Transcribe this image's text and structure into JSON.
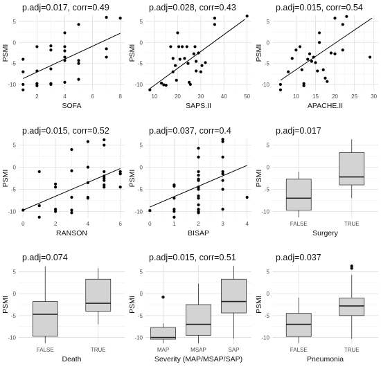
{
  "chart_data": [
    {
      "type": "scatter",
      "title": "p.adj=0.017, corr=0.49",
      "xlabel": "SOFA",
      "ylabel": "PSMI",
      "xlim": [
        1,
        8
      ],
      "ylim": [
        -11.5,
        6.5
      ],
      "xticks": [
        2,
        4,
        6,
        8
      ],
      "yticks": [
        -10,
        -5,
        0,
        5
      ],
      "fit": {
        "x": [
          1,
          8
        ],
        "y": [
          -8.6,
          2.2
        ]
      },
      "points": [
        [
          1,
          -4
        ],
        [
          1,
          -7
        ],
        [
          1,
          -10
        ],
        [
          1,
          -11.3
        ],
        [
          2,
          -1
        ],
        [
          2,
          -6.8
        ],
        [
          2,
          -9.8
        ],
        [
          2,
          -10.3
        ],
        [
          3,
          -0.8
        ],
        [
          3,
          -1.8
        ],
        [
          3,
          -6.3
        ],
        [
          3,
          -9.8
        ],
        [
          3,
          -10
        ],
        [
          4,
          2.3
        ],
        [
          4,
          -1
        ],
        [
          4,
          -2
        ],
        [
          4,
          -3.5
        ],
        [
          4,
          -4.3
        ],
        [
          4,
          -9.5
        ],
        [
          5,
          4.3
        ],
        [
          5,
          -4.3
        ],
        [
          5,
          -5
        ],
        [
          5,
          -8.8
        ],
        [
          7,
          6
        ],
        [
          7,
          -1.5
        ],
        [
          7,
          -3.5
        ],
        [
          8,
          5.8
        ]
      ]
    },
    {
      "type": "scatter",
      "title": "p.adj=0.028, corr=0.43",
      "xlabel": "SAPS.II",
      "ylabel": "PSMI",
      "xlim": [
        8,
        50
      ],
      "ylim": [
        -11.5,
        6.5
      ],
      "xticks": [
        10,
        20,
        30,
        40,
        50
      ],
      "yticks": [
        -10,
        -5,
        0,
        5
      ],
      "fit": {
        "x": [
          8,
          49
        ],
        "y": [
          -11,
          5.5
        ]
      },
      "points": [
        [
          8,
          -11.3
        ],
        [
          13,
          -9.7
        ],
        [
          14,
          -10.1
        ],
        [
          15,
          -10.2
        ],
        [
          17,
          -1
        ],
        [
          18,
          -3.8
        ],
        [
          18,
          -7
        ],
        [
          19,
          -5.5
        ],
        [
          19.5,
          -9
        ],
        [
          20,
          2.3
        ],
        [
          20.5,
          -1
        ],
        [
          21,
          -4
        ],
        [
          22,
          -1
        ],
        [
          23,
          -3.8
        ],
        [
          24,
          -1
        ],
        [
          24.5,
          -5
        ],
        [
          25,
          -9.5
        ],
        [
          25.5,
          -10
        ],
        [
          27,
          -2.7
        ],
        [
          27.5,
          -1
        ],
        [
          28,
          -4.5
        ],
        [
          28,
          -6.8
        ],
        [
          29,
          -2.5
        ],
        [
          30,
          -7
        ],
        [
          30.5,
          -5.5
        ],
        [
          32,
          -4.8
        ],
        [
          36,
          5.8
        ],
        [
          36,
          4.3
        ],
        [
          50,
          6.3
        ]
      ]
    },
    {
      "type": "scatter",
      "title": "p.adj=0.015, corr=0.54",
      "xlabel": "APACHE.II",
      "ylabel": "PSMI",
      "xlim": [
        5,
        30
      ],
      "ylim": [
        -11.5,
        6.5
      ],
      "xticks": [
        10,
        15,
        20,
        25,
        30
      ],
      "yticks": [
        -10,
        -5,
        0,
        5
      ],
      "fit": {
        "x": [
          6,
          29.5
        ],
        "y": [
          -9,
          5.8
        ]
      },
      "points": [
        [
          6,
          -10
        ],
        [
          6,
          -11.3
        ],
        [
          8,
          -7
        ],
        [
          9,
          -3.8
        ],
        [
          10,
          -1.8
        ],
        [
          11,
          -1
        ],
        [
          11.5,
          -6.5
        ],
        [
          12,
          -9.8
        ],
        [
          12,
          -10.3
        ],
        [
          13,
          -4
        ],
        [
          13.5,
          -2.7
        ],
        [
          14,
          -4.5
        ],
        [
          14.5,
          -3.5
        ],
        [
          15,
          -4.8
        ],
        [
          15.5,
          -6.8
        ],
        [
          16,
          2.3
        ],
        [
          16,
          0
        ],
        [
          17,
          -6.5
        ],
        [
          17.5,
          -8.5
        ],
        [
          18,
          -9.3
        ],
        [
          19,
          -2.5
        ],
        [
          20,
          5.8
        ],
        [
          20,
          -2.7
        ],
        [
          22,
          -1.8
        ],
        [
          22,
          4.3
        ],
        [
          23,
          6.2
        ],
        [
          29,
          -3.5
        ]
      ]
    },
    {
      "type": "scatter",
      "title": "p.adj=0.015, corr=0.52",
      "xlabel": "RANSON",
      "ylabel": "PSMI",
      "xlim": [
        0,
        6
      ],
      "ylim": [
        -11.5,
        6.5
      ],
      "xticks": [
        0,
        2,
        4,
        6
      ],
      "yticks": [
        -10,
        -5,
        0,
        5
      ],
      "fit": {
        "x": [
          0,
          6
        ],
        "y": [
          -9.7,
          -0.3
        ]
      },
      "points": [
        [
          0,
          -9.7
        ],
        [
          1,
          -1
        ],
        [
          1,
          -8.7
        ],
        [
          1,
          -11.3
        ],
        [
          2,
          -3.8
        ],
        [
          2,
          -4.5
        ],
        [
          2,
          -9.5
        ],
        [
          2,
          -10
        ],
        [
          3,
          4
        ],
        [
          3,
          -0.8
        ],
        [
          3,
          -6.8
        ],
        [
          3,
          -9.7
        ],
        [
          3,
          -10.3
        ],
        [
          4,
          5.8
        ],
        [
          4,
          0
        ],
        [
          4,
          -3.5
        ],
        [
          4,
          -6.8
        ],
        [
          4,
          -7
        ],
        [
          5,
          6.2
        ],
        [
          5,
          5
        ],
        [
          5,
          -1
        ],
        [
          5,
          -2
        ],
        [
          5,
          -2.5
        ],
        [
          5,
          -3
        ],
        [
          5,
          -4
        ],
        [
          5,
          -4.5
        ],
        [
          6,
          -1
        ],
        [
          6,
          -1.5
        ],
        [
          6,
          -4.5
        ]
      ]
    },
    {
      "type": "scatter",
      "title": "p.adj=0.037, corr=0.4",
      "xlabel": "BISAP",
      "ylabel": "PSMI",
      "xlim": [
        0,
        4
      ],
      "ylim": [
        -11.5,
        6.5
      ],
      "xticks": [
        0,
        1,
        2,
        3,
        4
      ],
      "yticks": [
        -10,
        -5,
        0,
        5
      ],
      "fit": {
        "x": [
          0,
          4
        ],
        "y": [
          -9,
          0.4
        ]
      },
      "points": [
        [
          0,
          -9.8
        ],
        [
          1,
          -4
        ],
        [
          1,
          -4.3
        ],
        [
          1,
          -7
        ],
        [
          1,
          -9.5
        ],
        [
          1,
          -10
        ],
        [
          1,
          -11.3
        ],
        [
          2,
          4.3
        ],
        [
          2,
          2.3
        ],
        [
          2,
          -1
        ],
        [
          2,
          -1.8
        ],
        [
          2,
          -2.7
        ],
        [
          2,
          -3
        ],
        [
          2,
          -4.5
        ],
        [
          2,
          -5
        ],
        [
          2,
          -6.5
        ],
        [
          2,
          -7
        ],
        [
          2,
          -8.5
        ],
        [
          2,
          -9.5
        ],
        [
          2,
          -10
        ],
        [
          2,
          -10.3
        ],
        [
          3,
          6.3
        ],
        [
          3,
          5.8
        ],
        [
          3,
          2.3
        ],
        [
          3,
          -1
        ],
        [
          3,
          -1.5
        ],
        [
          3,
          -3
        ],
        [
          3,
          -5
        ],
        [
          3,
          -9.5
        ],
        [
          4,
          -6.8
        ]
      ]
    },
    {
      "type": "box",
      "title": "p.adj=0.017",
      "xlabel": "Surgery",
      "ylabel": "PSMI",
      "ylim": [
        -11.5,
        6.5
      ],
      "yticks": [
        -10,
        -5,
        0,
        5
      ],
      "categories": [
        "FALSE",
        "TRUE"
      ],
      "boxes": [
        {
          "min": -11.3,
          "q1": -9.7,
          "median": -7,
          "q3": -2.7,
          "max": -1,
          "outliers": []
        },
        {
          "min": -7,
          "q1": -4,
          "median": -2.2,
          "q3": 3.3,
          "max": 6.3,
          "outliers": []
        }
      ]
    },
    {
      "type": "box",
      "title": "p.adj=0.074",
      "xlabel": "Death",
      "ylabel": "PSMI",
      "ylim": [
        -11.5,
        6.5
      ],
      "yticks": [
        -10,
        -5,
        0,
        5
      ],
      "categories": [
        "FALSE",
        "TRUE"
      ],
      "boxes": [
        {
          "min": -11.3,
          "q1": -9.7,
          "median": -4.7,
          "q3": -1.8,
          "max": 6.2,
          "outliers": []
        },
        {
          "min": -7,
          "q1": -4,
          "median": -2.2,
          "q3": 3.3,
          "max": 5.8,
          "outliers": []
        }
      ]
    },
    {
      "type": "box",
      "title": "p.adj=0.015, corr=0.51",
      "xlabel": "Severity (MAP/MSAP/SAP)",
      "ylabel": "PSMI",
      "ylim": [
        -11.5,
        6.5
      ],
      "yticks": [
        -10,
        -5,
        0,
        5
      ],
      "categories": [
        "MAP",
        "MSAP",
        "SAP"
      ],
      "boxes": [
        {
          "min": -11.3,
          "q1": -10.4,
          "median": -10,
          "q3": -7.7,
          "max": -6.8,
          "outliers": [
            -0.8
          ]
        },
        {
          "min": -11.3,
          "q1": -9.5,
          "median": -7,
          "q3": -2.5,
          "max": 2.3,
          "outliers": []
        },
        {
          "min": -10.2,
          "q1": -4.4,
          "median": -1.8,
          "q3": 3.3,
          "max": 6.3,
          "outliers": []
        }
      ]
    },
    {
      "type": "box",
      "title": "p.adj=0.037",
      "xlabel": "Pneumonia",
      "ylabel": "PSMI",
      "ylim": [
        -11.5,
        6.5
      ],
      "yticks": [
        -10,
        -5,
        0,
        5
      ],
      "categories": [
        "FALSE",
        "TRUE"
      ],
      "boxes": [
        {
          "min": -11.3,
          "q1": -9.8,
          "median": -7,
          "q3": -4.5,
          "max": -0.9,
          "outliers": []
        },
        {
          "min": -10.3,
          "q1": -5,
          "median": -2.8,
          "q3": -1,
          "max": 4.3,
          "outliers": [
            5.8,
            6.3
          ]
        }
      ]
    }
  ]
}
